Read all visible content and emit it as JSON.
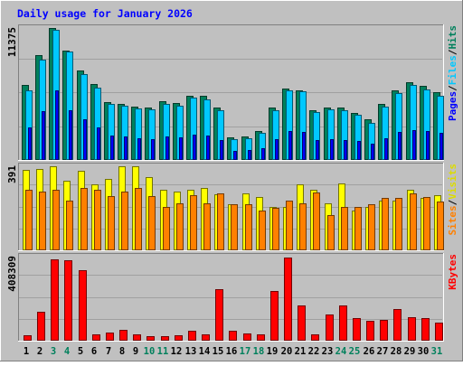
{
  "chart_data": {
    "type": "bar",
    "title": "Daily usage for January 2026",
    "categories": [
      "1",
      "2",
      "3",
      "4",
      "5",
      "6",
      "7",
      "8",
      "9",
      "10",
      "11",
      "12",
      "13",
      "14",
      "15",
      "16",
      "17",
      "18",
      "19",
      "20",
      "21",
      "22",
      "23",
      "24",
      "25",
      "26",
      "27",
      "28",
      "29",
      "30",
      "31"
    ],
    "weekend_days": [
      "3",
      "4",
      "10",
      "11",
      "17",
      "18",
      "24",
      "25",
      "31"
    ],
    "colors": {
      "background": "#c0c0c0",
      "plot_background": "#c0c0c0",
      "title": "#0000ff",
      "label_weekday": "#000000",
      "label_weekend": "#00805c",
      "hits": "#00805c",
      "files": "#00c8ff",
      "pages": "#0000ff",
      "visits": "#ffff00",
      "sites": "#ff8000",
      "kbytes": "#ff0000",
      "border_light": "#ffffff",
      "border_dark": "#808080"
    },
    "panels": [
      {
        "name": "hits_files_pages",
        "ymax_label": "11375",
        "ymax": 11375,
        "legend": [
          "Pages",
          "Files",
          "Hits"
        ],
        "series": [
          {
            "name": "Hits",
            "color": "#00805c",
            "values": [
              6449,
              9000,
              11375,
              9457,
              7729,
              6547,
              5000,
              4843,
              4606,
              4555,
              5092,
              4940,
              5500,
              5500,
              4538,
              1983,
              2022,
              2473,
              4490,
              6172,
              6000,
              4289,
              4555,
              4500,
              4070,
              3500,
              4803,
              6000,
              6700,
              6383,
              5830
            ]
          },
          {
            "name": "Files",
            "color": "#00c8ff",
            "values": [
              6000,
              8663,
              11250,
              9352,
              7393,
              6232,
              4805,
              4655,
              4468,
              4378,
              4861,
              4680,
              5337,
              5235,
              4261,
              1800,
              1860,
              2300,
              4300,
              5988,
              5956,
              4155,
              4355,
              4250,
              3890,
              3230,
              4600,
              5800,
              6447,
              6050,
              5526
            ]
          },
          {
            "name": "Pages",
            "color": "#0000ff",
            "values": [
              2800,
              4200,
              6000,
              4300,
              3500,
              2800,
              2100,
              2000,
              1900,
              1800,
              2000,
              1950,
              2200,
              2100,
              1700,
              800,
              850,
              1000,
              1800,
              2500,
              2400,
              1700,
              1800,
              1700,
              1600,
              1400,
              1900,
              2400,
              2600,
              2500,
              2300
            ]
          }
        ]
      },
      {
        "name": "visits_sites",
        "ymax_label": "391",
        "ymax": 391,
        "legend": [
          "Sites",
          "Visits"
        ],
        "series": [
          {
            "name": "Visits",
            "color": "#ffff00",
            "values": [
              374,
              380,
              391,
              325,
              372,
              306,
              331,
              391,
              391,
              339,
              282,
              273,
              282,
              291,
              262,
              213,
              266,
              250,
              200,
              200,
              307,
              281,
              219,
              310,
              187,
              200,
              233,
              233,
              282,
              243,
              257
            ]
          },
          {
            "name": "Sites",
            "color": "#ff8000",
            "values": [
              282,
              273,
              282,
              233,
              291,
              282,
              254,
              273,
              291,
              254,
              200,
              219,
              257,
              219,
              264,
              216,
              216,
              186,
              198,
              233,
              219,
              269,
              166,
              200,
              200,
              216,
              245,
              245,
              266,
              248,
              226
            ]
          }
        ]
      },
      {
        "name": "kbytes",
        "ymax_label": "408309",
        "ymax": 408309,
        "legend": [
          "KBytes"
        ],
        "series": [
          {
            "name": "KBytes",
            "color": "#ff0000",
            "values": [
              28000,
              141000,
              396000,
              389000,
              341000,
              32000,
              40000,
              52000,
              32000,
              23000,
              22000,
              25000,
              47000,
              30000,
              250000,
              47000,
              37000,
              30000,
              240000,
              402000,
              173000,
              30000,
              129000,
              170000,
              108000,
              96000,
              101000,
              152000,
              113000,
              110000,
              87000
            ]
          }
        ]
      }
    ]
  }
}
